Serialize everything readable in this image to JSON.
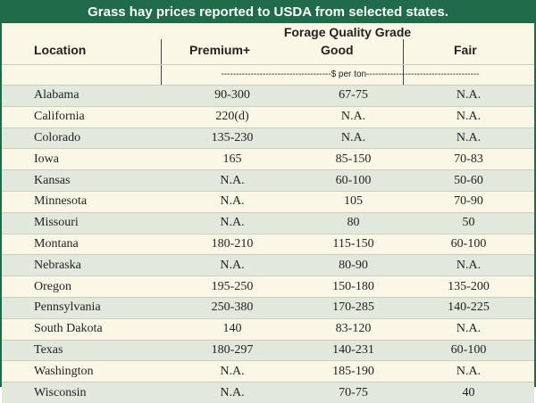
{
  "title": "Grass hay prices reported to USDA from selected states.",
  "header": {
    "location": "Location",
    "grade": "Forage Quality Grade",
    "premium": "Premium+",
    "good": "Good",
    "fair": "Fair"
  },
  "unit_line": "-------------------------------------$ per ton--------------------------------------",
  "rows": [
    {
      "location": "Alabama",
      "premium": "90-300",
      "good": "67-75",
      "fair": "N.A."
    },
    {
      "location": "California",
      "premium": "220(d)",
      "good": "N.A.",
      "fair": "N.A."
    },
    {
      "location": "Colorado",
      "premium": "135-230",
      "good": "N.A.",
      "fair": "N.A."
    },
    {
      "location": "Iowa",
      "premium": "165",
      "good": "85-150",
      "fair": "70-83"
    },
    {
      "location": "Kansas",
      "premium": "N.A.",
      "good": "60-100",
      "fair": "50-60"
    },
    {
      "location": "Minnesota",
      "premium": "N.A.",
      "good": "105",
      "fair": "70-90"
    },
    {
      "location": "Missouri",
      "premium": "N.A.",
      "good": "80",
      "fair": "50"
    },
    {
      "location": "Montana",
      "premium": "180-210",
      "good": "115-150",
      "fair": "60-100"
    },
    {
      "location": "Nebraska",
      "premium": "N.A.",
      "good": "80-90",
      "fair": "N.A."
    },
    {
      "location": "Oregon",
      "premium": "195-250",
      "good": "150-180",
      "fair": "135-200"
    },
    {
      "location": "Pennsylvania",
      "premium": "250-380",
      "good": "170-285",
      "fair": "140-225"
    },
    {
      "location": "South Dakota",
      "premium": "140",
      "good": "83-120",
      "fair": "N.A."
    },
    {
      "location": "Texas",
      "premium": "180-297",
      "good": "140-231",
      "fair": "60-100"
    },
    {
      "location": "Washington",
      "premium": "N.A.",
      "good": "185-190",
      "fair": "N.A."
    },
    {
      "location": "Wisconsin",
      "premium": "N.A.",
      "good": "70-75",
      "fair": "40"
    }
  ],
  "colors": {
    "accent": "#1f6b4a",
    "band": "#e3e8dc",
    "paper": "#fbf7e6"
  }
}
